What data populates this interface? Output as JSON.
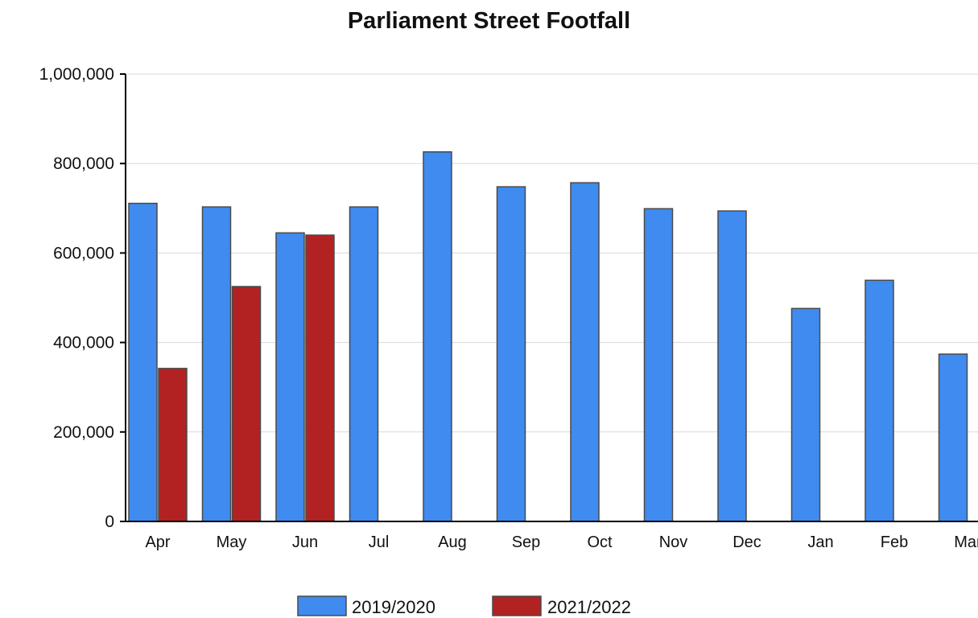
{
  "chart_data": {
    "type": "bar",
    "title": "Parliament Street Footfall",
    "xlabel": "",
    "ylabel": "",
    "categories": [
      "Apr",
      "May",
      "Jun",
      "Jul",
      "Aug",
      "Sep",
      "Oct",
      "Nov",
      "Dec",
      "Jan",
      "Feb",
      "Mar"
    ],
    "ylim": [
      0,
      1000000
    ],
    "yticks": [
      {
        "value": 0,
        "label": "0"
      },
      {
        "value": 200000,
        "label": "200,000"
      },
      {
        "value": 400000,
        "label": "400,000"
      },
      {
        "value": 600000,
        "label": "600,000"
      },
      {
        "value": 800000,
        "label": "800,000"
      },
      {
        "value": 1000000,
        "label": "1,000,000"
      }
    ],
    "grid": true,
    "legend": "bottom-center",
    "series": [
      {
        "name": "2019/2020",
        "color": "#3f8bef",
        "values": [
          711000,
          703000,
          645000,
          703000,
          826000,
          748000,
          757000,
          699000,
          694000,
          476000,
          539000,
          374000
        ]
      },
      {
        "name": "2021/2022",
        "color": "#b22222",
        "values": [
          342000,
          525000,
          640000,
          null,
          null,
          null,
          null,
          null,
          null,
          null,
          null,
          null
        ]
      }
    ]
  }
}
